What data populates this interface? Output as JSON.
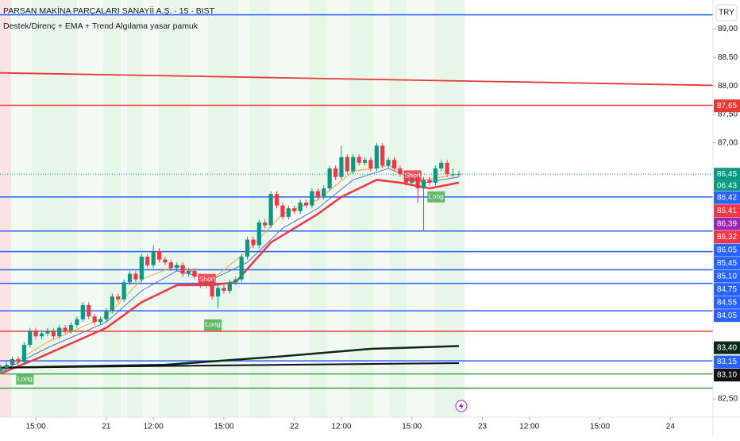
{
  "chart_data": {
    "type": "candlestick",
    "title": "PARSAN MAKİNA PARÇALARI SANAYİİ A.Ş. · 15 · BIST",
    "subtitle": "Destek/Direnç + EMA + Trend Algılama yasar pamuk",
    "currency": "TRY",
    "countdown": "06:43",
    "xlim": [
      -18.1,
      103.25
    ],
    "ylim": [
      82.18,
      89.51
    ],
    "xticks": [
      {
        "value": -12,
        "label": "15:00"
      },
      {
        "value": 0,
        "label": "21"
      },
      {
        "value": 8,
        "label": "12:00"
      },
      {
        "value": 20,
        "label": "15:00"
      },
      {
        "value": 32,
        "label": "22"
      },
      {
        "value": 40,
        "label": "12:00"
      },
      {
        "value": 52,
        "label": "15:00"
      },
      {
        "value": 64,
        "label": "23"
      },
      {
        "value": 72,
        "label": "12:00"
      },
      {
        "value": 84,
        "label": "15:00"
      },
      {
        "value": 96,
        "label": "24"
      }
    ],
    "yticks": [
      {
        "value": 89,
        "label": "89,00"
      },
      {
        "value": 88.5,
        "label": "88,50"
      },
      {
        "value": 88,
        "label": "88,00"
      },
      {
        "value": 87.5,
        "label": "87,50"
      },
      {
        "value": 87,
        "label": "87,00"
      },
      {
        "value": 82.5,
        "label": "82,50"
      }
    ],
    "up_color": "#089981",
    "down_color": "#f23645",
    "x": [
      -18,
      -17,
      -16,
      -15,
      -14,
      -13,
      -12,
      -11,
      -10,
      -9,
      -8,
      -7,
      -6,
      -5,
      -4,
      -3,
      -2,
      -1,
      0,
      1,
      2,
      3,
      4,
      5,
      6,
      7,
      8,
      9,
      10,
      11,
      12,
      13,
      14,
      15,
      16,
      17,
      18,
      19,
      20,
      21,
      22,
      23,
      24,
      25,
      26,
      27,
      28,
      29,
      30,
      31,
      32,
      33,
      34,
      35,
      36,
      37,
      38,
      39,
      40,
      41,
      42,
      43,
      44,
      45,
      46,
      47,
      48,
      49,
      50,
      51,
      52,
      53,
      54,
      55,
      56,
      57,
      58,
      59,
      60
    ],
    "candles": [
      [
        83.0,
        83.1,
        82.95,
        83.05
      ],
      [
        83.05,
        83.15,
        83.0,
        83.1
      ],
      [
        83.1,
        83.25,
        83.05,
        83.2
      ],
      [
        83.2,
        83.25,
        83.1,
        83.15
      ],
      [
        83.15,
        83.5,
        83.1,
        83.45
      ],
      [
        83.45,
        83.75,
        83.4,
        83.7
      ],
      [
        83.7,
        83.75,
        83.55,
        83.6
      ],
      [
        83.6,
        83.7,
        83.55,
        83.65
      ],
      [
        83.65,
        83.75,
        83.6,
        83.7
      ],
      [
        83.7,
        83.75,
        83.55,
        83.6
      ],
      [
        83.6,
        83.8,
        83.55,
        83.75
      ],
      [
        83.75,
        83.8,
        83.65,
        83.7
      ],
      [
        83.7,
        83.85,
        83.65,
        83.8
      ],
      [
        83.8,
        83.95,
        83.75,
        83.9
      ],
      [
        83.9,
        84.2,
        83.85,
        84.15
      ],
      [
        84.15,
        84.2,
        83.9,
        83.95
      ],
      [
        83.95,
        84.0,
        83.8,
        83.85
      ],
      [
        83.85,
        83.95,
        83.8,
        83.9
      ],
      [
        83.9,
        84.1,
        83.85,
        84.05
      ],
      [
        84.05,
        84.35,
        84.0,
        84.3
      ],
      [
        84.3,
        84.35,
        84.2,
        84.25
      ],
      [
        84.25,
        84.6,
        84.2,
        84.55
      ],
      [
        84.55,
        84.75,
        84.5,
        84.7
      ],
      [
        84.7,
        84.75,
        84.55,
        84.6
      ],
      [
        84.6,
        85.05,
        84.55,
        85.0
      ],
      [
        85.0,
        85.05,
        84.8,
        84.85
      ],
      [
        84.85,
        85.2,
        84.8,
        85.1
      ],
      [
        85.1,
        85.15,
        84.9,
        84.95
      ],
      [
        84.95,
        85.0,
        84.85,
        84.9
      ],
      [
        84.9,
        84.95,
        84.75,
        84.8
      ],
      [
        84.8,
        84.9,
        84.75,
        84.85
      ],
      [
        84.85,
        84.9,
        84.65,
        84.7
      ],
      [
        84.7,
        84.8,
        84.65,
        84.75
      ],
      [
        84.75,
        84.8,
        84.6,
        84.65
      ],
      [
        84.65,
        84.7,
        84.45,
        84.5
      ],
      [
        84.5,
        84.65,
        84.45,
        84.6
      ],
      [
        84.6,
        84.65,
        84.25,
        84.3
      ],
      [
        84.3,
        84.5,
        84.1,
        84.45
      ],
      [
        84.45,
        84.5,
        84.35,
        84.4
      ],
      [
        84.4,
        84.6,
        84.35,
        84.55
      ],
      [
        84.55,
        84.65,
        84.5,
        84.6
      ],
      [
        84.6,
        85.05,
        84.55,
        85.0
      ],
      [
        85.0,
        85.35,
        84.95,
        85.3
      ],
      [
        85.3,
        85.35,
        85.15,
        85.2
      ],
      [
        85.2,
        85.65,
        85.15,
        85.6
      ],
      [
        85.6,
        85.65,
        85.5,
        85.55
      ],
      [
        85.55,
        86.15,
        85.5,
        86.1
      ],
      [
        86.1,
        86.15,
        85.85,
        85.9
      ],
      [
        85.9,
        85.95,
        85.65,
        85.7
      ],
      [
        85.7,
        85.9,
        85.65,
        85.85
      ],
      [
        85.85,
        85.9,
        85.75,
        85.8
      ],
      [
        85.8,
        86.0,
        85.75,
        85.95
      ],
      [
        85.95,
        86.0,
        85.85,
        85.9
      ],
      [
        85.9,
        86.2,
        85.85,
        86.15
      ],
      [
        86.15,
        86.2,
        86.0,
        86.05
      ],
      [
        86.05,
        86.25,
        86.0,
        86.2
      ],
      [
        86.2,
        86.6,
        86.15,
        86.55
      ],
      [
        86.55,
        86.6,
        86.35,
        86.4
      ],
      [
        86.4,
        86.95,
        86.35,
        86.75
      ],
      [
        86.75,
        86.8,
        86.45,
        86.5
      ],
      [
        86.5,
        86.8,
        86.45,
        86.75
      ],
      [
        86.75,
        86.8,
        86.6,
        86.65
      ],
      [
        86.65,
        86.75,
        86.6,
        86.7
      ],
      [
        86.7,
        86.75,
        86.5,
        86.55
      ],
      [
        86.55,
        87.0,
        86.5,
        86.95
      ],
      [
        86.95,
        87.0,
        86.55,
        86.6
      ],
      [
        86.6,
        86.75,
        86.55,
        86.7
      ],
      [
        86.7,
        86.75,
        86.5,
        86.55
      ],
      [
        86.55,
        86.6,
        86.4,
        86.45
      ],
      [
        86.45,
        86.5,
        86.25,
        86.3
      ],
      [
        86.3,
        86.45,
        86.25,
        86.4
      ],
      [
        86.4,
        86.45,
        85.95,
        86.2
      ],
      [
        86.2,
        86.4,
        85.45,
        86.35
      ],
      [
        86.35,
        86.4,
        86.25,
        86.3
      ],
      [
        86.3,
        86.6,
        86.25,
        86.55
      ],
      [
        86.55,
        86.7,
        86.5,
        86.65
      ],
      [
        86.65,
        86.7,
        86.4,
        86.45
      ],
      [
        86.45,
        86.55,
        86.4,
        86.45
      ],
      [
        86.45,
        86.5,
        86.4,
        86.45
      ]
    ],
    "ema_lines": [
      {
        "color": "#f7a440",
        "width": 1,
        "x": [
          -18,
          -10,
          0,
          6,
          12,
          18,
          24,
          30,
          36,
          42,
          48,
          54,
          60
        ],
        "values": [
          83.0,
          83.5,
          83.95,
          84.6,
          84.85,
          84.6,
          85.1,
          85.75,
          86.0,
          86.5,
          86.6,
          86.35,
          86.45
        ]
      },
      {
        "color": "#5b6fd6",
        "width": 1,
        "x": [
          -18,
          -10,
          0,
          6,
          12,
          18,
          24,
          30,
          36,
          42,
          48,
          54,
          60
        ],
        "values": [
          82.98,
          83.4,
          83.85,
          84.4,
          84.75,
          84.6,
          84.9,
          85.5,
          85.85,
          86.35,
          86.55,
          86.3,
          86.4
        ]
      },
      {
        "color": "#f23645",
        "width": 2.5,
        "x": [
          -18,
          -12,
          0,
          6,
          12,
          18,
          22,
          28,
          36,
          40,
          46,
          50,
          55,
          60
        ],
        "values": [
          82.95,
          83.2,
          83.75,
          84.2,
          84.5,
          84.5,
          84.55,
          85.25,
          85.75,
          86.05,
          86.35,
          86.3,
          86.2,
          86.3
        ]
      },
      {
        "color": "#0b2a1a",
        "width": 2.5,
        "x": [
          -18,
          10,
          30,
          45,
          60
        ],
        "values": [
          83.05,
          83.1,
          83.25,
          83.38,
          83.43
        ]
      },
      {
        "color": "#111111",
        "width": 2,
        "x": [
          -18,
          30,
          60
        ],
        "values": [
          83.05,
          83.1,
          83.13
        ]
      }
    ],
    "levels": [
      {
        "value": 89.25,
        "color": "#2962ff"
      },
      {
        "value": 87.66,
        "color": "#e53935"
      },
      {
        "value": 86.05,
        "color": "#2962ff"
      },
      {
        "value": 85.45,
        "color": "#2962ff"
      },
      {
        "value": 85.09,
        "color": "#2962ff"
      },
      {
        "value": 84.77,
        "color": "#2962ff"
      },
      {
        "value": 84.53,
        "color": "#2962ff"
      },
      {
        "value": 84.05,
        "color": "#2962ff"
      },
      {
        "value": 83.69,
        "color": "#e53935"
      },
      {
        "value": 83.17,
        "color": "#2962ff"
      },
      {
        "value": 82.94,
        "color": "#43a047"
      },
      {
        "value": 82.69,
        "color": "#43a047"
      }
    ],
    "trend_line": {
      "color": "#e53935",
      "x": [
        -18.1,
        103.25
      ],
      "values": [
        88.23,
        88.01
      ]
    },
    "price_labels": [
      {
        "value": 87.65,
        "label": "87,65",
        "color": "#e53935"
      },
      {
        "value": 86.45,
        "label": "86,45",
        "color": "#089981"
      },
      {
        "value": 86.42,
        "label": "86,42",
        "color": "#2962ff"
      },
      {
        "value": 86.41,
        "label": "86,41",
        "color": "#f23645"
      },
      {
        "value": 86.39,
        "label": "86,39",
        "color": "#9c27b0"
      },
      {
        "value": 86.32,
        "label": "86,32",
        "color": "#f23645"
      },
      {
        "value": 86.05,
        "label": "86,05",
        "color": "#2962ff"
      },
      {
        "value": 85.45,
        "label": "85,45",
        "color": "#2962ff"
      },
      {
        "value": 85.1,
        "label": "85,10",
        "color": "#2962ff"
      },
      {
        "value": 84.75,
        "label": "84,75",
        "color": "#2962ff"
      },
      {
        "value": 84.55,
        "label": "84,55",
        "color": "#2962ff"
      },
      {
        "value": 84.05,
        "label": "84,05",
        "color": "#2962ff"
      },
      {
        "value": 83.4,
        "label": "83,40",
        "color": "#0b2a1a"
      },
      {
        "value": 83.15,
        "label": "83,15",
        "color": "#2962ff"
      },
      {
        "value": 83.1,
        "label": "83,10",
        "color": "#111111"
      }
    ],
    "signals": [
      {
        "x": -14,
        "value": 82.85,
        "text": "Long",
        "color": "#4caf50"
      },
      {
        "x": 17,
        "value": 84.6,
        "text": "Short",
        "color": "#f23645"
      },
      {
        "x": 18,
        "value": 83.8,
        "text": "Long",
        "color": "#4caf50"
      },
      {
        "x": 52,
        "value": 86.42,
        "text": "Short",
        "color": "#f23645"
      },
      {
        "x": 56,
        "value": 86.05,
        "text": "Long",
        "color": "#4caf50"
      }
    ]
  }
}
